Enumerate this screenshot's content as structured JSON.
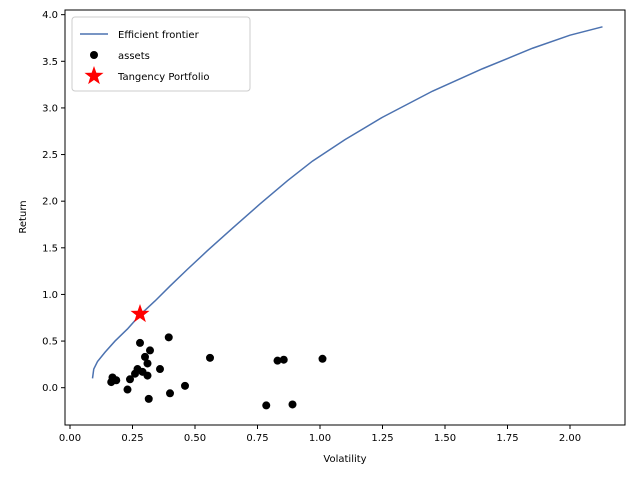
{
  "chart_data": {
    "type": "scatter",
    "xlabel": "Volatility",
    "ylabel": "Return",
    "xlim": [
      -0.02,
      2.22
    ],
    "ylim": [
      -0.4,
      4.05
    ],
    "x_ticks": [
      "0.00",
      "0.25",
      "0.50",
      "0.75",
      "1.00",
      "1.25",
      "1.50",
      "1.75",
      "2.00"
    ],
    "y_ticks": [
      "0.0",
      "0.5",
      "1.0",
      "1.5",
      "2.0",
      "2.5",
      "3.0",
      "3.5",
      "4.0"
    ],
    "grid": false,
    "legend_position": "top-left",
    "frontier": {
      "name": "Efficient frontier",
      "color": "#4c72b0",
      "points": [
        [
          0.09,
          0.1
        ],
        [
          0.095,
          0.2
        ],
        [
          0.11,
          0.28
        ],
        [
          0.14,
          0.38
        ],
        [
          0.18,
          0.5
        ],
        [
          0.23,
          0.63
        ],
        [
          0.28,
          0.78
        ],
        [
          0.34,
          0.93
        ],
        [
          0.4,
          1.09
        ],
        [
          0.47,
          1.27
        ],
        [
          0.55,
          1.47
        ],
        [
          0.65,
          1.71
        ],
        [
          0.76,
          1.97
        ],
        [
          0.87,
          2.22
        ],
        [
          0.97,
          2.43
        ],
        [
          1.1,
          2.66
        ],
        [
          1.25,
          2.9
        ],
        [
          1.45,
          3.18
        ],
        [
          1.65,
          3.42
        ],
        [
          1.85,
          3.64
        ],
        [
          2.0,
          3.78
        ],
        [
          2.13,
          3.87
        ]
      ]
    },
    "assets": {
      "name": "assets",
      "color": "#000000",
      "points": [
        [
          0.165,
          0.06
        ],
        [
          0.17,
          0.11
        ],
        [
          0.185,
          0.08
        ],
        [
          0.23,
          -0.02
        ],
        [
          0.24,
          0.09
        ],
        [
          0.26,
          0.15
        ],
        [
          0.27,
          0.2
        ],
        [
          0.28,
          0.48
        ],
        [
          0.29,
          0.17
        ],
        [
          0.3,
          0.33
        ],
        [
          0.31,
          0.13
        ],
        [
          0.31,
          0.26
        ],
        [
          0.315,
          -0.12
        ],
        [
          0.32,
          0.4
        ],
        [
          0.36,
          0.2
        ],
        [
          0.395,
          0.54
        ],
        [
          0.4,
          -0.06
        ],
        [
          0.46,
          0.02
        ],
        [
          0.56,
          0.32
        ],
        [
          0.785,
          -0.19
        ],
        [
          0.83,
          0.29
        ],
        [
          0.855,
          0.3
        ],
        [
          0.89,
          -0.18
        ],
        [
          1.01,
          0.31
        ]
      ]
    },
    "tangency": {
      "name": "Tangency Portfolio",
      "color": "#ff0000",
      "point": [
        0.28,
        0.79
      ]
    }
  }
}
